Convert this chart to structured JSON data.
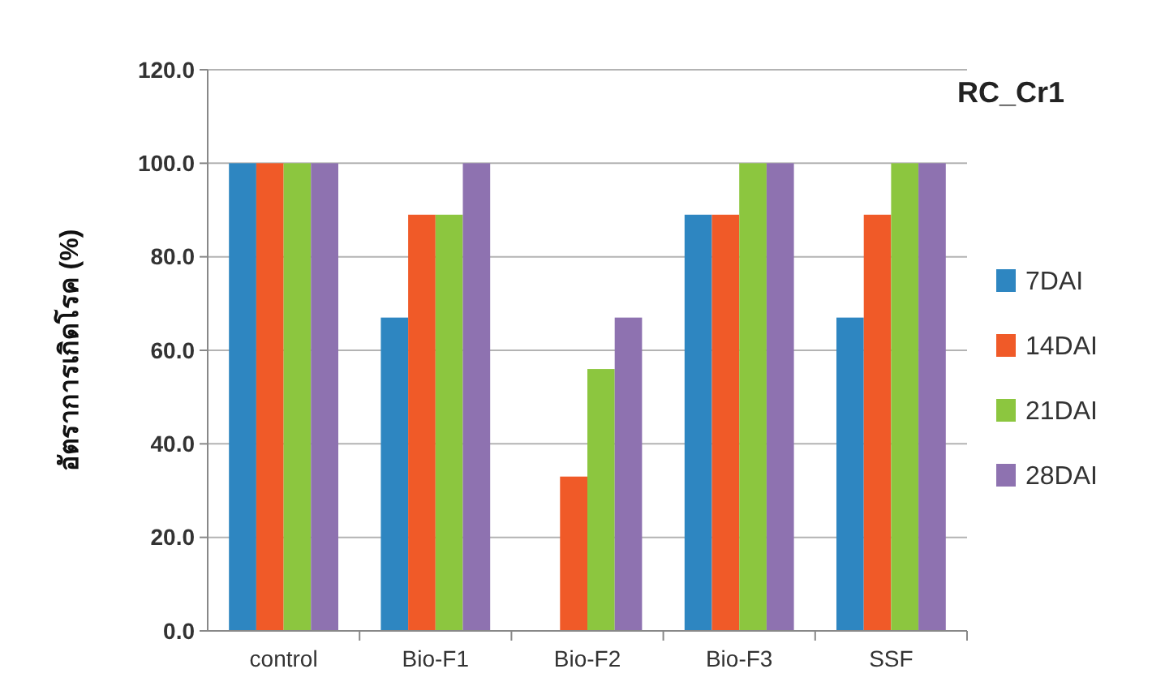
{
  "chart_data": {
    "type": "bar",
    "title": "RC_Cr1",
    "ylabel": "อัตราการเกิดโรค (%)",
    "categories": [
      "control",
      "Bio-F1",
      "Bio-F2",
      "Bio-F3",
      "SSF"
    ],
    "series": [
      {
        "name": "7DAI",
        "color": "#2e86c1",
        "values": [
          100,
          67,
          0,
          89,
          67
        ]
      },
      {
        "name": "14DAI",
        "color": "#f05a28",
        "values": [
          100,
          89,
          33,
          89,
          89
        ]
      },
      {
        "name": "21DAI",
        "color": "#8cc63f",
        "values": [
          100,
          89,
          56,
          100,
          100
        ]
      },
      {
        "name": "28DAI",
        "color": "#8e72b0",
        "values": [
          100,
          100,
          67,
          100,
          100
        ]
      }
    ],
    "ylim": [
      0,
      120
    ],
    "yticks": [
      {
        "value": 0,
        "label": "0.0"
      },
      {
        "value": 20,
        "label": "20.0"
      },
      {
        "value": 40,
        "label": "40.0"
      },
      {
        "value": 60,
        "label": "60.0"
      },
      {
        "value": 80,
        "label": "80.0"
      },
      {
        "value": 100,
        "label": "100.0"
      },
      {
        "value": 120,
        "label": "120.0"
      }
    ],
    "grid": "y",
    "legend": "right"
  }
}
